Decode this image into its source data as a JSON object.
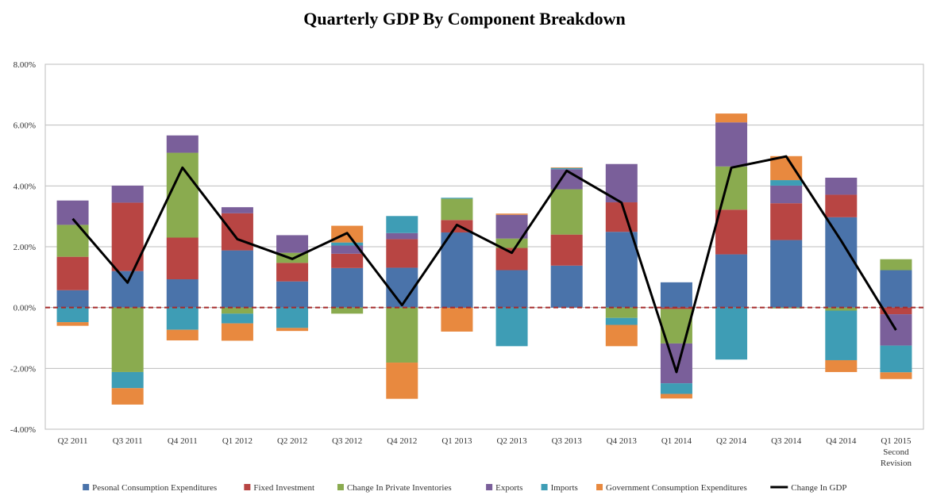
{
  "chart_data": {
    "type": "bar",
    "stacked": true,
    "title": "Quarterly GDP By Component Breakdown",
    "xlabel": "",
    "ylabel": "",
    "ylim": [
      -4,
      8
    ],
    "yticks": [
      "-4.00%",
      "-2.00%",
      "0.00%",
      "2.00%",
      "4.00%",
      "6.00%",
      "8.00%"
    ],
    "grid": true,
    "legend_position": "bottom",
    "zero_line": {
      "style": "dashed",
      "color": "#a52a2a"
    },
    "categories": [
      [
        "Q2 2011"
      ],
      [
        "Q3 2011"
      ],
      [
        "Q4 2011"
      ],
      [
        "Q1 2012"
      ],
      [
        "Q2 2012"
      ],
      [
        "Q3 2012"
      ],
      [
        "Q4 2012"
      ],
      [
        "Q1 2013"
      ],
      [
        "Q2 2013"
      ],
      [
        "Q3 2013"
      ],
      [
        "Q4 2013"
      ],
      [
        "Q1 2014"
      ],
      [
        "Q2 2014"
      ],
      [
        "Q3 2014"
      ],
      [
        "Q4 2014"
      ],
      [
        "Q1 2015",
        "Second",
        "Revision"
      ]
    ],
    "series": [
      {
        "name": "Pesonal Consumption Expenditures",
        "color": "#4a73aa",
        "values": [
          0.57,
          1.2,
          0.93,
          1.88,
          0.86,
          1.3,
          1.31,
          2.47,
          1.23,
          1.38,
          2.49,
          0.83,
          1.75,
          2.22,
          2.97,
          1.23
        ]
      },
      {
        "name": "Fixed Investment",
        "color": "#b84543",
        "values": [
          1.1,
          2.25,
          1.37,
          1.22,
          0.61,
          0.47,
          0.94,
          0.41,
          0.73,
          1.02,
          0.97,
          -0.05,
          1.47,
          1.21,
          0.74,
          -0.22
        ]
      },
      {
        "name": "Change In Private Inventories",
        "color": "#8aab4f",
        "values": [
          1.05,
          -2.12,
          2.79,
          -0.2,
          0.33,
          -0.2,
          -1.81,
          0.7,
          0.31,
          1.49,
          -0.34,
          -1.13,
          1.42,
          -0.03,
          -0.1,
          0.36
        ]
      },
      {
        "name": "Exports",
        "color": "#7a5f9a",
        "values": [
          0.8,
          0.56,
          0.57,
          0.2,
          0.58,
          0.27,
          0.2,
          -0.01,
          0.78,
          0.66,
          1.26,
          -1.31,
          1.45,
          0.58,
          0.56,
          -1.03
        ]
      },
      {
        "name": "Imports",
        "color": "#3e9db5",
        "values": [
          -0.48,
          -0.53,
          -0.73,
          -0.32,
          -0.67,
          0.1,
          0.56,
          0.03,
          -1.27,
          0.04,
          -0.23,
          -0.35,
          -1.71,
          0.18,
          -1.63,
          -0.88
        ]
      },
      {
        "name": "Government Consumption Expenditures",
        "color": "#e8893f",
        "values": [
          -0.12,
          -0.54,
          -0.35,
          -0.57,
          -0.1,
          0.55,
          -1.19,
          -0.78,
          0.04,
          0.02,
          -0.7,
          -0.15,
          0.29,
          0.79,
          -0.39,
          -0.22
        ]
      }
    ],
    "line": {
      "name": "Change In GDP",
      "color": "#000000",
      "values": [
        2.92,
        0.82,
        4.6,
        2.25,
        1.6,
        2.45,
        0.08,
        2.72,
        1.8,
        4.5,
        3.45,
        -2.12,
        4.6,
        4.97,
        2.2,
        -0.74
      ]
    }
  }
}
